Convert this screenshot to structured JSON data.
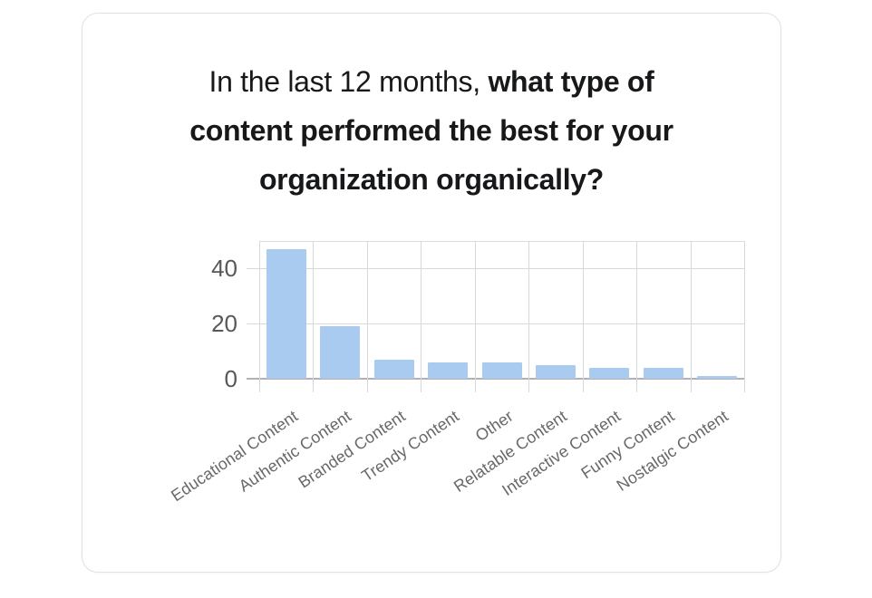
{
  "title": {
    "full": "In the last 12 months, what type of content performed the best for your organization organically?",
    "line1_regular": "In the last 12 months,",
    "line1_bold": "what type of",
    "line2": "content performed the best for your",
    "line3": "organization organically?"
  },
  "chart_data": {
    "type": "bar",
    "title": "In the last 12 months, what type of content performed the best for your organization organically?",
    "categories": [
      "Educational Content",
      "Authentic Content",
      "Branded Content",
      "Trendy Content",
      "Other",
      "Relatable Content",
      "Interactive Content",
      "Funny Content",
      "Nostalgic Content"
    ],
    "values": [
      47,
      19,
      7,
      6,
      6,
      5,
      4,
      4,
      1
    ],
    "xlabel": "",
    "ylabel": "",
    "ylim": [
      0,
      50
    ],
    "yticks": [
      0,
      20,
      40
    ],
    "grid": true,
    "legend": false,
    "x_label_rotation_deg": -34,
    "bar_color": "#a8cbef"
  },
  "colors": {
    "bar": "#a8cbef",
    "gridline": "#d8d8da",
    "baseline": "#b2b2b5",
    "card_border": "#e2e2e4",
    "title_text": "#17181a",
    "axis_text": "#58585b",
    "category_text": "#686868",
    "background": "#ffffff"
  }
}
